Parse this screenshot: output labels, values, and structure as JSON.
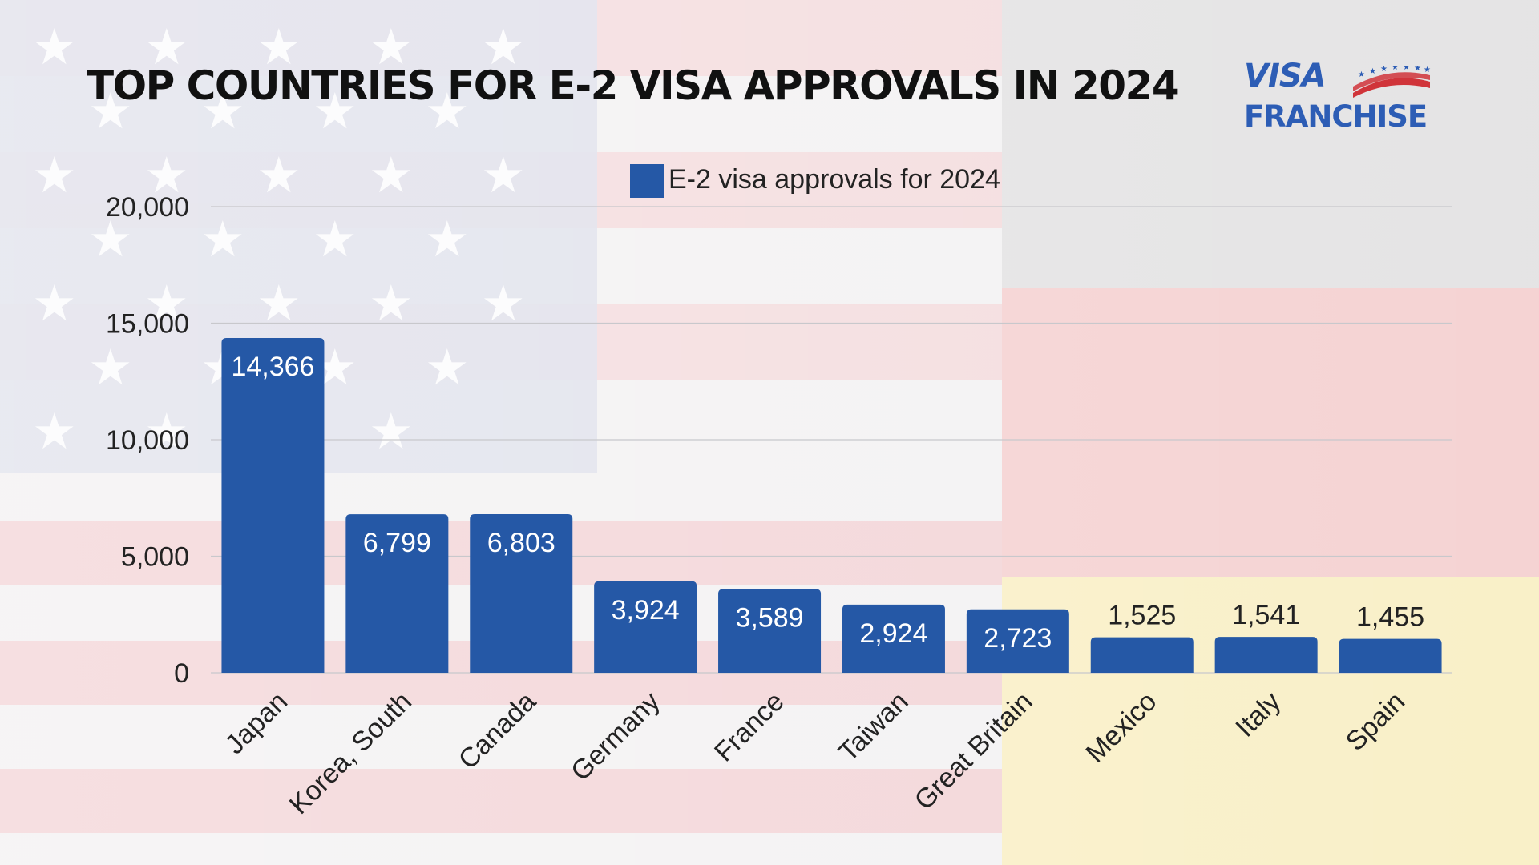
{
  "title": "TOP COUNTRIES FOR E-2 VISA APPROVALS IN 2024",
  "logo": {
    "line1": "VISA",
    "line2": "FRANCHISE",
    "color": "#2d5db5"
  },
  "colors": {
    "bar": "#2558a6",
    "grid": "#c8c8cc",
    "axis_text": "#222222"
  },
  "background": {
    "description_icon": "us-german-flag-background"
  },
  "chart_data": {
    "type": "bar",
    "title": "TOP COUNTRIES FOR E-2 VISA APPROVALS IN 2024",
    "categories": [
      "Japan",
      "Korea, South",
      "Canada",
      "Germany",
      "France",
      "Taiwan",
      "Great Britain",
      "Mexico",
      "Italy",
      "Spain"
    ],
    "series": [
      {
        "name": "E-2 visa approvals for 2024",
        "values": [
          14366,
          6799,
          6803,
          3924,
          3589,
          2924,
          2723,
          1525,
          1541,
          1455
        ],
        "labels": [
          "14,366",
          "6,799",
          "6,803",
          "3,924",
          "3,589",
          "2,924",
          "2,723",
          "1,525",
          "1,541",
          "1,455"
        ]
      }
    ],
    "yticks": [
      "0",
      "5,000",
      "10,000",
      "15,000",
      "20,000"
    ],
    "ylim": [
      0,
      20000
    ],
    "grid": true,
    "legend": "top-center",
    "xlabel": "",
    "ylabel": ""
  }
}
